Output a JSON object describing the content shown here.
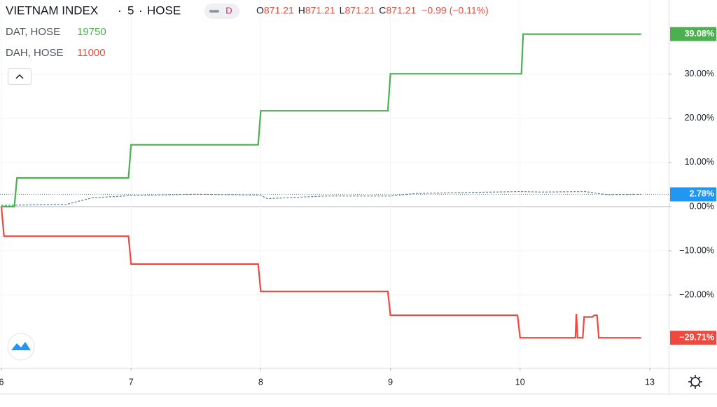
{
  "chart_data": {
    "type": "line",
    "symbol": "VIETNAM INDEX",
    "interval": "5",
    "exchange": "HOSE",
    "badge": "D",
    "ohlc": [
      {
        "label": "O",
        "value": "871.21"
      },
      {
        "label": "H",
        "value": "871.21"
      },
      {
        "label": "L",
        "value": "871.21"
      },
      {
        "label": "C",
        "value": "871.21"
      }
    ],
    "change": "−0.99 (−0.11%)",
    "xlim": [
      6,
      13
    ],
    "xticks": [
      6,
      7,
      8,
      9,
      10,
      13
    ],
    "ylim": [
      -36.5,
      46.8
    ],
    "yticks": [
      {
        "value": 30,
        "label": "30.00%"
      },
      {
        "value": 20,
        "label": "20.00%"
      },
      {
        "value": 10,
        "label": "10.00%"
      },
      {
        "value": 0,
        "label": "0.00%"
      },
      {
        "value": -10,
        "label": "−10.00%"
      },
      {
        "value": -20,
        "label": "−20.00%"
      }
    ],
    "grid": true,
    "series": [
      {
        "name": "VIETNAM INDEX",
        "color": "#5d7f8c",
        "x": [
          6.0,
          6.5,
          6.7,
          7.0,
          7.5,
          8.0,
          8.05,
          8.5,
          9.0,
          9.2,
          9.6,
          10.0,
          10.5,
          11.5,
          12.0,
          12.8
        ],
        "values": [
          0.3,
          0.5,
          2.0,
          2.5,
          2.8,
          2.6,
          1.8,
          2.4,
          2.4,
          3.0,
          3.2,
          3.4,
          3.3,
          3.4,
          2.7,
          2.78
        ],
        "value_labels": [
          null,
          null,
          null,
          null,
          null,
          null,
          null,
          null,
          null,
          null,
          null,
          null,
          null,
          null,
          null,
          "2.78%"
        ],
        "label_color": "#2196f3"
      },
      {
        "name": "DAT, HOSE",
        "price": 19750,
        "color": "#4caf50",
        "x": [
          6.0,
          6.1,
          6.12,
          6.98,
          7.0,
          7.98,
          8.0,
          8.98,
          9.0,
          10.03,
          10.07,
          12.8
        ],
        "values": [
          0,
          0,
          6.5,
          6.5,
          14.0,
          14.0,
          21.7,
          21.7,
          30.1,
          30.1,
          39.08,
          39.08
        ],
        "value_labels": [
          null,
          null,
          null,
          null,
          null,
          null,
          null,
          null,
          null,
          null,
          null,
          "39.08%"
        ],
        "label_color": "#4caf50"
      },
      {
        "name": "DAH, HOSE",
        "price": 11000,
        "color": "#f0483c",
        "x": [
          6.0,
          6.02,
          6.98,
          7.0,
          7.98,
          8.0,
          8.98,
          9.0,
          9.98,
          10.0,
          11.28,
          11.3,
          11.33,
          11.45,
          11.48,
          11.67,
          11.72,
          11.78,
          11.82,
          12.8
        ],
        "values": [
          0,
          -6.7,
          -6.7,
          -13.0,
          -13.0,
          -19.2,
          -19.2,
          -24.6,
          -24.6,
          -29.71,
          -29.71,
          -24.3,
          -29.71,
          -29.71,
          -25.0,
          -25.0,
          -24.6,
          -24.6,
          -29.71,
          -29.71
        ],
        "value_labels": [
          null,
          null,
          null,
          null,
          null,
          null,
          null,
          null,
          null,
          null,
          null,
          null,
          null,
          null,
          null,
          null,
          null,
          null,
          null,
          "−29.71%"
        ],
        "label_color": "#f0483c"
      }
    ]
  }
}
